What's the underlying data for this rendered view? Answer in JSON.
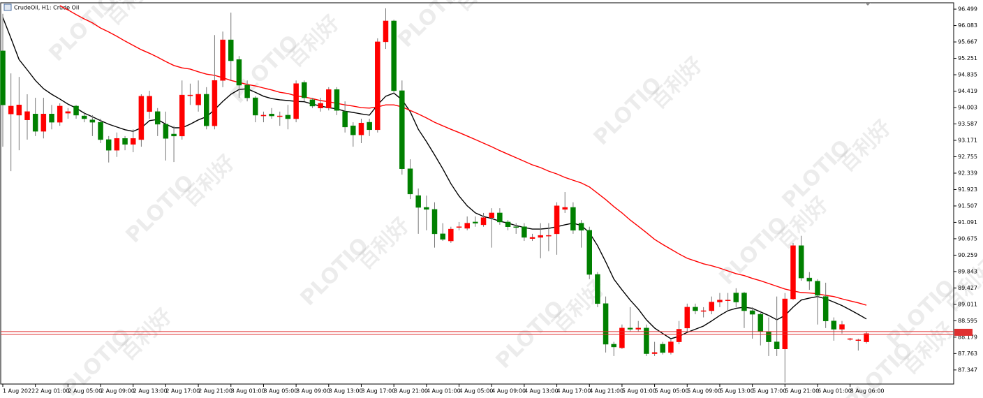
{
  "chart_data": {
    "type": "candlestick",
    "title": "CrudeOil, H1:  Crude Oil",
    "watermark": {
      "brand": "PLOTIO",
      "cn": "百利好"
    },
    "categories": [
      "1 Aug 2022",
      null,
      null,
      null,
      "2 Aug 01:00",
      null,
      null,
      null,
      "2 Aug 05:00",
      null,
      null,
      null,
      "2 Aug 09:00",
      null,
      null,
      null,
      "2 Aug 13:00",
      null,
      null,
      null,
      "2 Aug 17:00",
      null,
      null,
      null,
      "2 Aug 21:00",
      null,
      null,
      null,
      "3 Aug 01:00",
      null,
      null,
      null,
      "3 Aug 05:00",
      null,
      null,
      null,
      "3 Aug 09:00",
      null,
      null,
      null,
      "3 Aug 13:00",
      null,
      null,
      null,
      "3 Aug 17:00",
      null,
      null,
      null,
      "3 Aug 21:00",
      null,
      null,
      null,
      "4 Aug 01:00",
      null,
      null,
      null,
      "4 Aug 05:00",
      null,
      null,
      null,
      "4 Aug 09:00",
      null,
      null,
      null,
      "4 Aug 13:00",
      null,
      null,
      null,
      "4 Aug 17:00",
      null,
      null,
      null,
      "4 Aug 21:00",
      null,
      null,
      null,
      "5 Aug 01:00",
      null,
      null,
      null,
      "5 Aug 05:00",
      null,
      null,
      null,
      "5 Aug 09:00",
      null,
      null,
      null,
      "5 Aug 13:00",
      null,
      null,
      null,
      "5 Aug 17:00",
      null,
      null,
      null,
      "5 Aug 21:00",
      null,
      null,
      null,
      "6 Aug 01:00",
      null,
      null,
      null,
      "8 Aug 06:00",
      null,
      null
    ],
    "open": [
      95.44,
      93.84,
      93.81,
      93.69,
      93.84,
      93.4,
      93.84,
      93.63,
      93.86,
      94.04,
      93.79,
      93.69,
      93.63,
      93.19,
      92.92,
      93.22,
      93.07,
      93.19,
      93.9,
      93.9,
      93.58,
      93.33,
      93.28,
      94.32,
      94.07,
      94.34,
      93.54,
      94.69,
      95.72,
      95.22,
      94.57,
      94.25,
      93.79,
      93.84,
      93.79,
      93.81,
      93.72,
      94.64,
      94.2,
      93.99,
      93.99,
      94.46,
      93.9,
      93.54,
      93.31,
      93.63,
      93.44,
      95.67,
      96.2,
      94.43,
      92.45,
      91.77,
      91.47,
      91.42,
      90.8,
      90.62,
      90.98,
      90.94,
      91.1,
      91.03,
      91.21,
      91.33,
      91.1,
      90.98,
      90.98,
      90.68,
      90.71,
      90.76,
      90.8,
      91.42,
      91.47,
      91.07,
      90.89,
      89.77,
      89.03,
      88.0,
      87.91,
      88.41,
      88.38,
      88.41,
      87.76,
      88.0,
      87.79,
      88.06,
      88.41,
      88.94,
      88.85,
      88.85,
      89.07,
      89.12,
      89.3,
      89.3,
      88.85,
      88.76,
      88.32,
      88.06,
      87.88,
      89.15,
      90.5,
      89.68,
      89.6,
      89.21,
      88.59,
      88.38,
      88.13,
      88.11,
      88.06
    ],
    "high": [
      96.38,
      94.87,
      94.78,
      94.34,
      94.25,
      94.25,
      94.07,
      94.11,
      93.99,
      94.07,
      93.9,
      93.81,
      93.72,
      93.28,
      93.37,
      93.28,
      93.45,
      94.34,
      94.43,
      93.99,
      93.9,
      93.54,
      94.69,
      94.61,
      94.69,
      94.52,
      95.84,
      95.93,
      96.41,
      95.31,
      94.69,
      94.29,
      93.9,
      93.99,
      93.9,
      94.07,
      94.69,
      94.69,
      94.25,
      94.25,
      94.52,
      94.52,
      94.16,
      93.63,
      93.72,
      93.72,
      95.76,
      96.52,
      96.23,
      94.69,
      92.69,
      91.95,
      91.77,
      91.6,
      91.07,
      90.98,
      91.1,
      91.24,
      91.24,
      91.33,
      91.45,
      91.45,
      91.15,
      91.07,
      91.07,
      90.8,
      91.07,
      91.07,
      91.6,
      91.86,
      91.6,
      91.15,
      90.98,
      89.83,
      89.21,
      88.06,
      88.5,
      88.94,
      88.59,
      88.5,
      88.06,
      88.06,
      88.14,
      88.59,
      89.03,
      89.03,
      88.94,
      89.21,
      89.3,
      89.3,
      89.42,
      89.33,
      88.94,
      88.85,
      88.68,
      89.21,
      89.3,
      90.57,
      90.75,
      89.83,
      89.65,
      89.56,
      88.68,
      88.59,
      88.16,
      88.14,
      88.32
    ],
    "low": [
      93.01,
      92.39,
      92.92,
      93.19,
      93.28,
      93.22,
      93.45,
      93.54,
      93.72,
      93.72,
      93.63,
      93.28,
      93.1,
      92.61,
      92.75,
      92.92,
      92.87,
      93.01,
      93.72,
      93.28,
      92.66,
      92.62,
      93.19,
      94.07,
      93.9,
      93.45,
      93.45,
      94.52,
      94.69,
      94.25,
      94.16,
      93.63,
      93.63,
      93.72,
      93.54,
      93.45,
      93.63,
      94.16,
      93.99,
      93.9,
      93.93,
      93.81,
      93.37,
      93.01,
      93.1,
      93.28,
      93.37,
      95.49,
      94.34,
      92.3,
      91.68,
      90.8,
      90.89,
      90.45,
      90.62,
      90.57,
      90.89,
      90.89,
      90.98,
      90.98,
      90.45,
      91.03,
      90.89,
      90.8,
      90.62,
      90.62,
      90.18,
      90.36,
      90.27,
      91.33,
      90.8,
      90.45,
      89.65,
      88.94,
      87.79,
      87.7,
      87.88,
      88.32,
      88.32,
      87.7,
      87.7,
      87.74,
      87.74,
      88.0,
      88.32,
      88.76,
      88.68,
      88.76,
      88.94,
      88.85,
      88.94,
      88.41,
      88.14,
      87.97,
      87.7,
      87.7,
      87.03,
      89.12,
      89.61,
      89.38,
      88.5,
      88.41,
      88.09,
      88.27,
      88.09,
      87.84,
      88.02
    ],
    "close": [
      94.07,
      94.04,
      94.07,
      93.9,
      93.4,
      93.84,
      93.63,
      94.04,
      93.9,
      93.81,
      93.72,
      93.63,
      93.19,
      92.92,
      93.22,
      93.07,
      93.22,
      94.29,
      94.29,
      93.58,
      93.22,
      93.28,
      94.32,
      94.32,
      94.34,
      93.54,
      94.69,
      95.72,
      95.19,
      94.57,
      94.25,
      93.81,
      93.81,
      93.79,
      93.79,
      93.72,
      94.61,
      94.25,
      94.04,
      94.11,
      94.46,
      93.93,
      93.51,
      93.31,
      93.61,
      93.44,
      95.67,
      96.2,
      94.43,
      92.45,
      91.81,
      91.47,
      91.42,
      90.8,
      90.66,
      90.92,
      90.98,
      91.07,
      91.07,
      91.21,
      91.33,
      91.1,
      90.98,
      90.96,
      90.71,
      90.71,
      90.76,
      90.76,
      91.51,
      91.47,
      90.89,
      90.89,
      89.77,
      89.03,
      88.0,
      87.93,
      88.41,
      88.38,
      88.41,
      87.76,
      87.79,
      87.79,
      88.06,
      88.38,
      88.94,
      88.85,
      88.85,
      89.07,
      89.12,
      89.12,
      89.07,
      88.85,
      88.76,
      88.32,
      88.06,
      87.88,
      89.15,
      90.5,
      89.68,
      89.6,
      89.24,
      88.59,
      88.38,
      88.5,
      88.14,
      88.11,
      88.27
    ],
    "up_color": "#ff0000",
    "down_color": "#008000",
    "wick_color": "#777777",
    "lines": [
      {
        "color": "#000000",
        "values": [
          96.29,
          95.76,
          95.22,
          94.96,
          94.69,
          94.48,
          94.34,
          94.22,
          94.09,
          93.99,
          93.86,
          93.77,
          93.67,
          93.58,
          93.51,
          93.44,
          93.4,
          93.49,
          93.67,
          93.7,
          93.58,
          93.49,
          93.49,
          93.58,
          93.69,
          93.77,
          93.95,
          94.16,
          94.34,
          94.46,
          94.48,
          94.39,
          94.29,
          94.23,
          94.2,
          94.18,
          94.16,
          94.15,
          94.09,
          94.04,
          94.0,
          93.97,
          93.91,
          93.88,
          93.84,
          93.81,
          94.07,
          94.29,
          94.37,
          94.2,
          93.9,
          93.45,
          93.14,
          92.8,
          92.45,
          92.07,
          91.76,
          91.51,
          91.33,
          91.24,
          91.19,
          91.12,
          91.07,
          91.01,
          90.96,
          90.92,
          90.92,
          90.94,
          90.98,
          91.03,
          91.07,
          91.01,
          90.83,
          90.5,
          90.09,
          89.65,
          89.38,
          89.12,
          88.89,
          88.62,
          88.41,
          88.27,
          88.14,
          88.2,
          88.3,
          88.38,
          88.46,
          88.59,
          88.73,
          88.85,
          88.91,
          88.94,
          88.91,
          88.82,
          88.73,
          88.62,
          88.73,
          88.94,
          89.12,
          89.17,
          89.21,
          89.15,
          89.07,
          88.98,
          88.87,
          88.76,
          88.64
        ]
      },
      {
        "color": "#ff0000",
        "values": [
          null,
          null,
          null,
          null,
          null,
          null,
          null,
          96.59,
          96.48,
          96.36,
          96.25,
          96.15,
          96.02,
          95.92,
          95.81,
          95.69,
          95.58,
          95.47,
          95.38,
          95.28,
          95.17,
          95.07,
          95.01,
          94.98,
          94.91,
          94.85,
          94.82,
          94.76,
          94.69,
          94.64,
          94.59,
          94.55,
          94.5,
          94.45,
          94.39,
          94.36,
          94.3,
          94.27,
          94.23,
          94.18,
          94.15,
          94.11,
          94.07,
          94.04,
          94.0,
          93.99,
          94.02,
          94.07,
          94.07,
          94.02,
          93.93,
          93.84,
          93.74,
          93.63,
          93.54,
          93.45,
          93.37,
          93.28,
          93.19,
          93.1,
          93.01,
          92.91,
          92.82,
          92.73,
          92.64,
          92.55,
          92.48,
          92.39,
          92.32,
          92.23,
          92.16,
          92.09,
          91.99,
          91.83,
          91.67,
          91.49,
          91.33,
          91.15,
          90.99,
          90.83,
          90.66,
          90.53,
          90.41,
          90.29,
          90.18,
          90.11,
          90.04,
          89.99,
          89.93,
          89.86,
          89.79,
          89.74,
          89.67,
          89.61,
          89.54,
          89.47,
          89.4,
          89.35,
          89.31,
          89.3,
          89.28,
          89.24,
          89.21,
          89.15,
          89.1,
          89.05,
          88.99
        ]
      }
    ],
    "price_lines": [
      88.32,
      88.25
    ],
    "price_line_color": "#e03030",
    "ylim": [
      86.99,
      96.66
    ],
    "yticks": [
      96.499,
      96.083,
      95.667,
      95.251,
      94.835,
      94.419,
      94.003,
      93.587,
      93.171,
      92.755,
      92.339,
      91.923,
      91.507,
      91.091,
      90.675,
      90.259,
      89.843,
      89.427,
      89.011,
      88.595,
      88.179,
      87.763,
      87.347
    ]
  }
}
